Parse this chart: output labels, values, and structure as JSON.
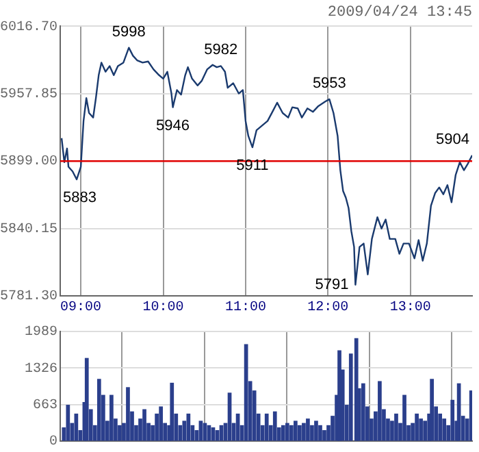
{
  "chart_data": [
    {
      "type": "line",
      "title": "2009/04/24 13:45",
      "color": "#1a3a6e",
      "x": [
        8.767,
        8.8,
        8.833,
        8.85,
        8.9,
        8.95,
        9,
        9.033,
        9.067,
        9.1,
        9.15,
        9.183,
        9.217,
        9.25,
        9.3,
        9.35,
        9.4,
        9.45,
        9.517,
        9.583,
        9.633,
        9.683,
        9.75,
        9.817,
        9.883,
        9.95,
        10,
        10.05,
        10.1,
        10.117,
        10.167,
        10.217,
        10.267,
        10.3,
        10.35,
        10.417,
        10.467,
        10.533,
        10.6,
        10.65,
        10.7,
        10.75,
        10.783,
        10.85,
        10.917,
        10.967,
        11,
        11.033,
        11.083,
        11.133,
        11.2,
        11.267,
        11.333,
        11.383,
        11.45,
        11.517,
        11.567,
        11.633,
        11.683,
        11.75,
        11.817,
        11.883,
        11.967,
        12.017,
        12.067,
        12.117,
        12.15,
        12.183,
        12.217,
        12.25,
        12.283,
        12.317,
        12.333,
        12.383,
        12.433,
        12.483,
        12.533,
        12.6,
        12.65,
        12.7,
        12.75,
        12.817,
        12.867,
        12.917,
        12.983,
        13.05,
        13.1,
        13.15,
        13.2,
        13.25,
        13.3,
        13.35,
        13.4,
        13.45,
        13.5,
        13.55,
        13.6,
        13.65,
        13.7,
        13.75
      ],
      "values": [
        5919,
        5898,
        5910,
        5894,
        5890,
        5883,
        5894,
        5934,
        5954,
        5941,
        5937,
        5954,
        5974,
        5985,
        5977,
        5982,
        5974,
        5982,
        5985,
        5998,
        5991,
        5987,
        5985,
        5986,
        5979,
        5974,
        5971,
        5977,
        5958,
        5946,
        5961,
        5957,
        5974,
        5981,
        5971,
        5965,
        5969,
        5979,
        5983,
        5981,
        5982,
        5977,
        5963,
        5967,
        5958,
        5961,
        5934,
        5921,
        5911,
        5926,
        5930,
        5934,
        5943,
        5950,
        5941,
        5937,
        5946,
        5945,
        5937,
        5945,
        5942,
        5947,
        5951,
        5953,
        5941,
        5921,
        5891,
        5873,
        5867,
        5858,
        5838,
        5824,
        5791,
        5824,
        5827,
        5800,
        5831,
        5850,
        5840,
        5848,
        5831,
        5831,
        5818,
        5827,
        5827,
        5814,
        5830,
        5812,
        5827,
        5860,
        5871,
        5876,
        5870,
        5878,
        5863,
        5887,
        5898,
        5891,
        5897,
        5904
      ],
      "xlim": [
        8.75,
        13.75
      ],
      "xticks": [
        {
          "value": 9,
          "label": "09:00"
        },
        {
          "value": 10,
          "label": "10:00"
        },
        {
          "value": 11,
          "label": "11:00"
        },
        {
          "value": 12,
          "label": "12:00"
        },
        {
          "value": 13,
          "label": "13:00"
        }
      ],
      "ylim": [
        5781.3,
        6016.7
      ],
      "yticks": [
        {
          "value": 5781.3,
          "label": "5781.30"
        },
        {
          "value": 5840.15,
          "label": "5840.15"
        },
        {
          "value": 5899,
          "label": "5899.00"
        },
        {
          "value": 5957.85,
          "label": "5957.85"
        },
        {
          "value": 6016.7,
          "label": "6016.70"
        }
      ],
      "grid": true,
      "marker": "none",
      "ref_lines": [
        {
          "axis": "y",
          "value": 5899,
          "color": "#e00000"
        }
      ],
      "annotations": [
        {
          "text": "5998",
          "x": 9.583,
          "y": 5998
        },
        {
          "text": "5946",
          "x": 10.117,
          "y": 5946
        },
        {
          "text": "5982",
          "x": 10.7,
          "y": 5982
        },
        {
          "text": "5911",
          "x": 11.083,
          "y": 5911
        },
        {
          "text": "5953",
          "x": 12.017,
          "y": 5953
        },
        {
          "text": "5883",
          "x": 8.95,
          "y": 5883
        },
        {
          "text": "5791",
          "x": 12.333,
          "y": 5791
        },
        {
          "text": "5904",
          "x": 13.75,
          "y": 5904
        }
      ]
    },
    {
      "type": "bar",
      "color": "#2b3f8c",
      "x": [
        8.794,
        8.844,
        8.894,
        8.944,
        8.994,
        9.044,
        9.072,
        9.122,
        9.172,
        9.222,
        9.272,
        9.322,
        9.372,
        9.422,
        9.472,
        9.522,
        9.572,
        9.622,
        9.672,
        9.722,
        9.772,
        9.822,
        9.872,
        9.922,
        9.972,
        10.022,
        10.072,
        10.106,
        10.156,
        10.206,
        10.256,
        10.306,
        10.356,
        10.406,
        10.456,
        10.506,
        10.556,
        10.606,
        10.656,
        10.706,
        10.756,
        10.806,
        10.856,
        10.906,
        10.956,
        11.006,
        11.056,
        11.106,
        11.156,
        11.206,
        11.256,
        11.306,
        11.356,
        11.406,
        11.456,
        11.506,
        11.556,
        11.606,
        11.656,
        11.706,
        11.756,
        11.806,
        11.856,
        11.906,
        11.956,
        12.006,
        12.056,
        12.106,
        12.139,
        12.178,
        12.228,
        12.278,
        12.344,
        12.378,
        12.428,
        12.478,
        12.528,
        12.578,
        12.628,
        12.678,
        12.728,
        12.778,
        12.828,
        12.878,
        12.928,
        12.978,
        13.028,
        13.078,
        13.128,
        13.178,
        13.228,
        13.261,
        13.311,
        13.361,
        13.411,
        13.461,
        13.511,
        13.561,
        13.589,
        13.639,
        13.689,
        13.739
      ],
      "values": [
        240,
        650,
        320,
        490,
        190,
        700,
        1500,
        570,
        280,
        1120,
        830,
        360,
        830,
        400,
        280,
        320,
        970,
        530,
        280,
        400,
        570,
        320,
        280,
        490,
        620,
        320,
        280,
        1050,
        490,
        280,
        360,
        490,
        280,
        190,
        360,
        320,
        280,
        240,
        190,
        280,
        320,
        870,
        320,
        490,
        280,
        1750,
        1080,
        910,
        490,
        280,
        490,
        280,
        530,
        240,
        280,
        320,
        280,
        360,
        280,
        320,
        400,
        280,
        360,
        280,
        190,
        280,
        450,
        830,
        1640,
        1290,
        650,
        1580,
        1860,
        950,
        1040,
        620,
        400,
        530,
        1080,
        570,
        400,
        360,
        490,
        320,
        830,
        280,
        320,
        490,
        400,
        360,
        490,
        1120,
        620,
        490,
        400,
        280,
        740,
        360,
        1040,
        450,
        400,
        910
      ],
      "xlim": [
        8.75,
        13.75
      ],
      "xticks": [
        {
          "value": 9,
          "label": null
        },
        {
          "value": 10,
          "label": null
        },
        {
          "value": 11,
          "label": null
        },
        {
          "value": 12,
          "label": null
        },
        {
          "value": 13,
          "label": null
        }
      ],
      "ylim": [
        0,
        1989
      ],
      "yticks": [
        0,
        663,
        1326,
        1989
      ],
      "grid": true,
      "tick_labels": "y"
    }
  ]
}
